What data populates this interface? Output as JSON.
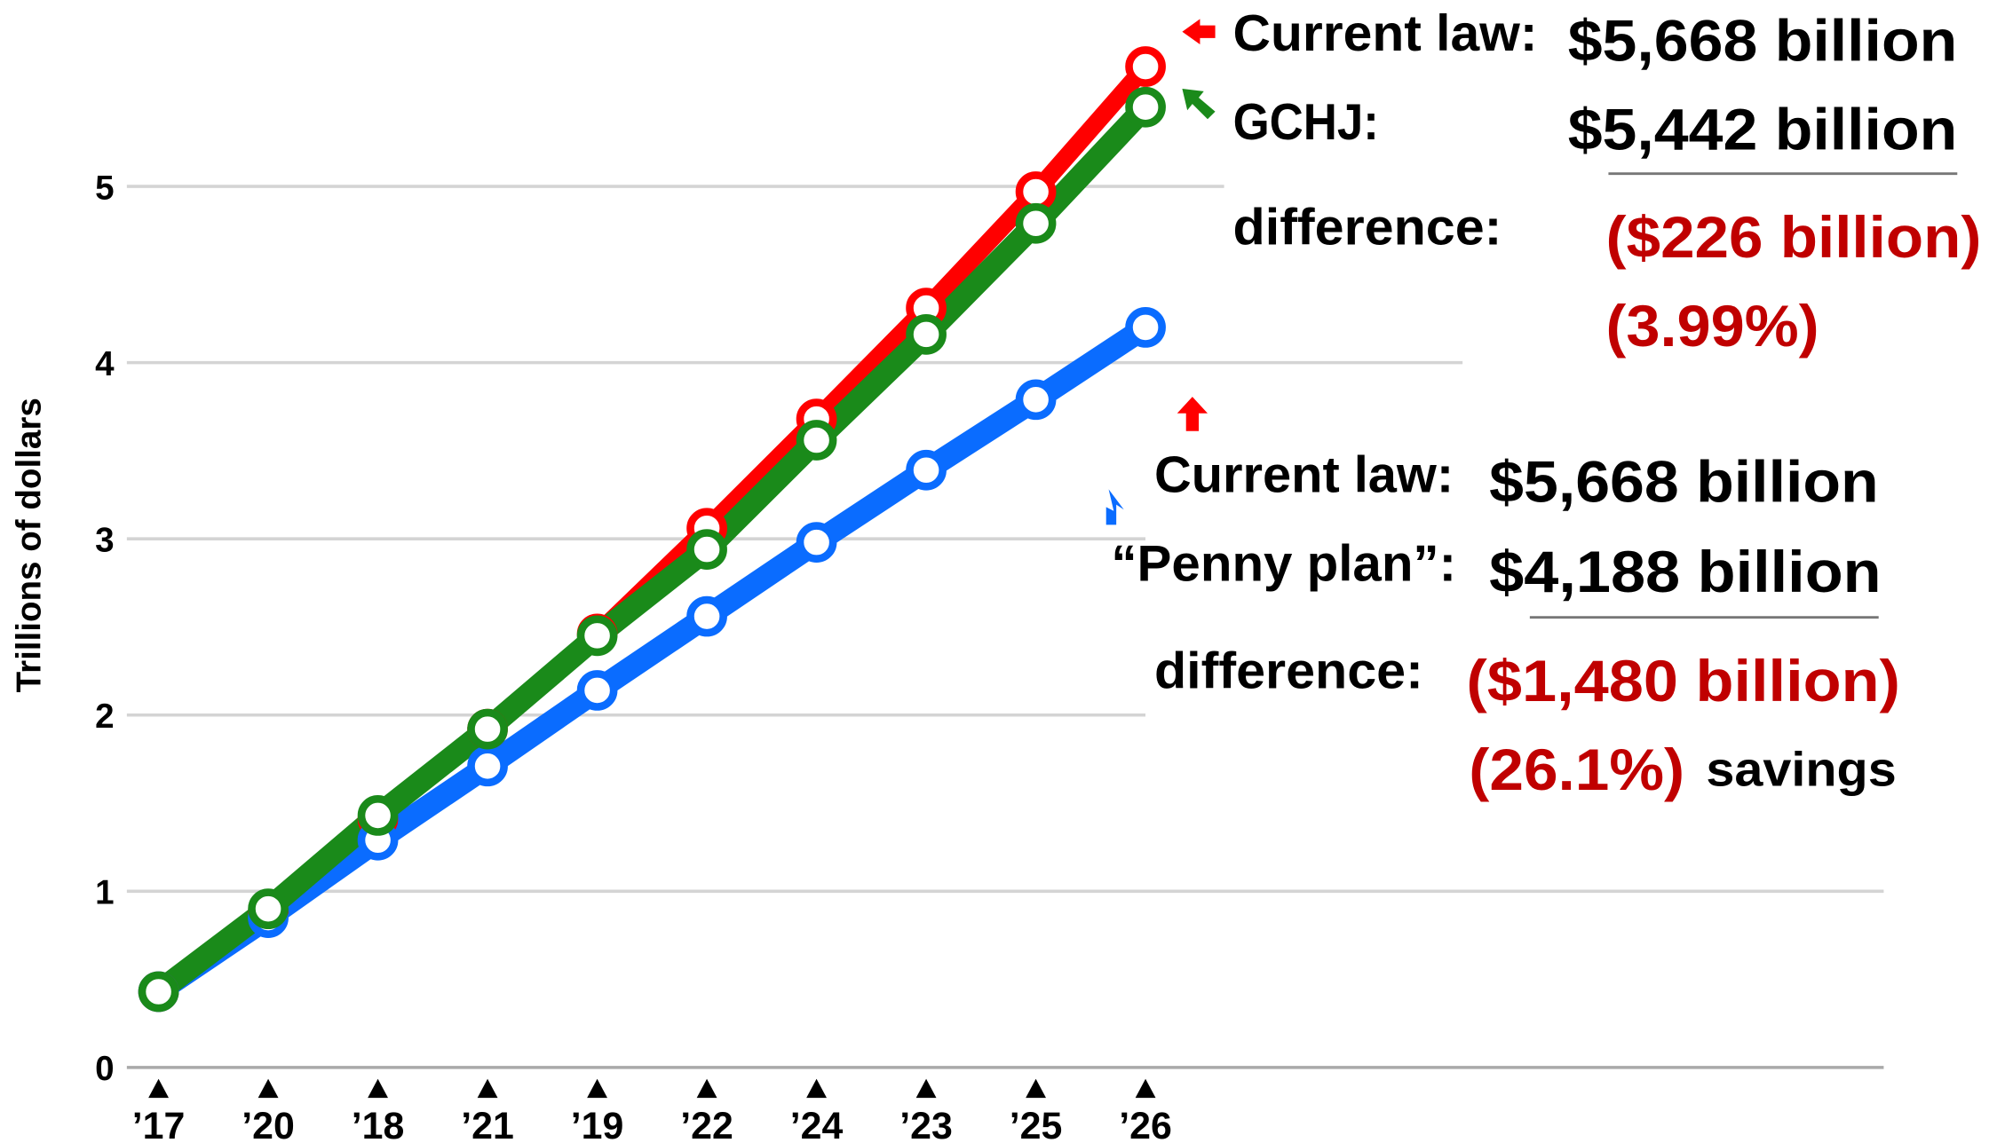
{
  "chart_data": {
    "type": "line",
    "ylabel": "Trillions of dollars",
    "categories": [
      "’17",
      "’20",
      "’18",
      "’21",
      "’19",
      "’22",
      "’24",
      "’23",
      "’25",
      "’26"
    ],
    "series": [
      {
        "name": "Current law",
        "color": "#ff0000",
        "values": [
          0.43,
          0.88,
          1.41,
          1.92,
          2.46,
          3.06,
          3.68,
          4.31,
          4.97,
          5.68
        ]
      },
      {
        "name": "Penny plan",
        "color": "#0a6cff",
        "values": [
          0.43,
          0.85,
          1.29,
          1.71,
          2.14,
          2.56,
          2.98,
          3.39,
          3.79,
          4.2
        ]
      },
      {
        "name": "GCHJ",
        "color": "#1a8a1a",
        "values": [
          0.43,
          0.9,
          1.43,
          1.92,
          2.45,
          2.94,
          3.56,
          4.16,
          4.79,
          5.45
        ]
      }
    ],
    "ylim": [
      0,
      5.95
    ],
    "yticks": [
      0,
      1,
      2,
      3,
      4,
      5
    ],
    "grid": true,
    "annotations": [
      {
        "rows": [
          [
            "Current law:",
            "$5,668 billion"
          ],
          [
            "GCHJ:",
            "$5,442 billion"
          ],
          [
            "difference:",
            "($226 billion)"
          ],
          [
            "(3.99%)"
          ]
        ]
      },
      {
        "rows": [
          [
            "Current law:",
            "$5,668 billion"
          ],
          [
            "“Penny plan”:",
            "$4,188 billion"
          ],
          [
            "difference:",
            "($1,480 billion)"
          ],
          [
            "(26.1%)",
            "savings"
          ]
        ]
      }
    ]
  }
}
